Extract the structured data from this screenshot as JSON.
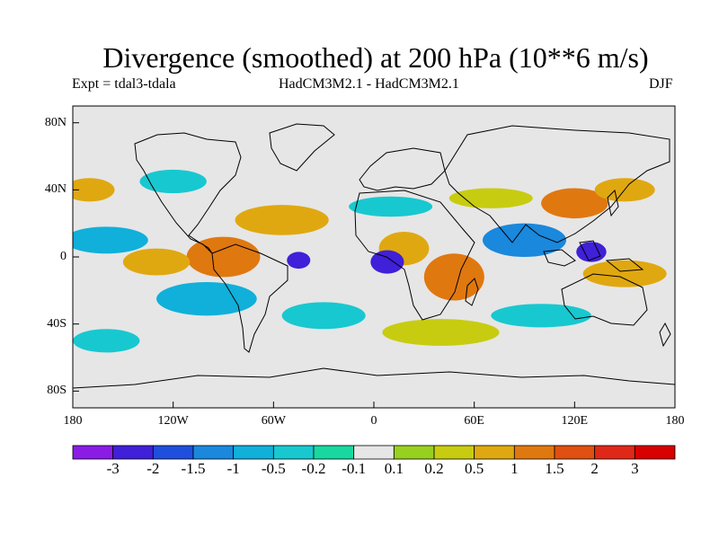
{
  "title": "Divergence (smoothed) at 200 hPa (10**6 m/s)",
  "subtitle_left": "Expt = tdal3-tdala",
  "subtitle_center": "HadCM3M2.1 - HadCM3M2.1",
  "subtitle_right": "DJF",
  "lat_ticks": [
    {
      "label": "80N",
      "value": 80
    },
    {
      "label": "40N",
      "value": 40
    },
    {
      "label": "0",
      "value": 0
    },
    {
      "label": "40S",
      "value": -40
    },
    {
      "label": "80S",
      "value": -80
    }
  ],
  "lon_ticks": [
    {
      "label": "180",
      "value": -180
    },
    {
      "label": "120W",
      "value": -120
    },
    {
      "label": "60W",
      "value": -60
    },
    {
      "label": "0",
      "value": 0
    },
    {
      "label": "60E",
      "value": 60
    },
    {
      "label": "120E",
      "value": 120
    },
    {
      "label": "180",
      "value": 180
    }
  ],
  "colorbar": {
    "labels": [
      "-3",
      "-2",
      "-1.5",
      "-1",
      "-0.5",
      "-0.2",
      "-0.1",
      "0.1",
      "0.2",
      "0.5",
      "1",
      "1.5",
      "2",
      "3"
    ],
    "colors": [
      "#8a1ce6",
      "#4020d8",
      "#1f4fdc",
      "#1a88dc",
      "#10b0da",
      "#18c8d0",
      "#18d8a0",
      "#e6e6e6",
      "#98d020",
      "#c8cc10",
      "#e0a810",
      "#e07810",
      "#e05010",
      "#e02818",
      "#d80000"
    ]
  },
  "field_blobs": [
    {
      "lon": -90,
      "lat": 0,
      "rx": 14,
      "ry": 8,
      "color": "#e05010"
    },
    {
      "lon": -90,
      "lat": 0,
      "rx": 22,
      "ry": 12,
      "color": "#e07810"
    },
    {
      "lon": -130,
      "lat": -3,
      "rx": 20,
      "ry": 8,
      "color": "#e0a810"
    },
    {
      "lon": 48,
      "lat": -12,
      "rx": 9,
      "ry": 8,
      "color": "#e02818"
    },
    {
      "lon": 48,
      "lat": -12,
      "rx": 18,
      "ry": 14,
      "color": "#e07810"
    },
    {
      "lon": 120,
      "lat": 32,
      "rx": 20,
      "ry": 9,
      "color": "#e07810"
    },
    {
      "lon": -55,
      "lat": 22,
      "rx": 28,
      "ry": 9,
      "color": "#e0a810"
    },
    {
      "lon": 18,
      "lat": 5,
      "rx": 15,
      "ry": 10,
      "color": "#e0a810"
    },
    {
      "lon": -45,
      "lat": -2,
      "rx": 7,
      "ry": 5,
      "color": "#4020d8"
    },
    {
      "lon": 8,
      "lat": -3,
      "rx": 10,
      "ry": 7,
      "color": "#4020d8"
    },
    {
      "lon": 130,
      "lat": 3,
      "rx": 9,
      "ry": 6,
      "color": "#4020d8"
    },
    {
      "lon": -160,
      "lat": 10,
      "rx": 25,
      "ry": 8,
      "color": "#10b0da"
    },
    {
      "lon": -100,
      "lat": -25,
      "rx": 30,
      "ry": 10,
      "color": "#10b0da"
    },
    {
      "lon": 90,
      "lat": 10,
      "rx": 25,
      "ry": 10,
      "color": "#1a88dc"
    },
    {
      "lon": 150,
      "lat": -10,
      "rx": 25,
      "ry": 8,
      "color": "#e0a810"
    },
    {
      "lon": 40,
      "lat": -45,
      "rx": 35,
      "ry": 8,
      "color": "#c8cc10"
    },
    {
      "lon": -160,
      "lat": -50,
      "rx": 20,
      "ry": 7,
      "color": "#18c8d0"
    },
    {
      "lon": 10,
      "lat": 30,
      "rx": 25,
      "ry": 6,
      "color": "#18c8d0"
    },
    {
      "lon": -30,
      "lat": -35,
      "rx": 25,
      "ry": 8,
      "color": "#18c8d0"
    },
    {
      "lon": 150,
      "lat": 40,
      "rx": 18,
      "ry": 7,
      "color": "#e0a810"
    },
    {
      "lon": 70,
      "lat": 35,
      "rx": 25,
      "ry": 6,
      "color": "#c8cc10"
    },
    {
      "lon": -120,
      "lat": 45,
      "rx": 20,
      "ry": 7,
      "color": "#18c8d0"
    },
    {
      "lon": -170,
      "lat": 40,
      "rx": 15,
      "ry": 7,
      "color": "#e0a810"
    },
    {
      "lon": 100,
      "lat": -35,
      "rx": 30,
      "ry": 7,
      "color": "#18c8d0"
    }
  ]
}
